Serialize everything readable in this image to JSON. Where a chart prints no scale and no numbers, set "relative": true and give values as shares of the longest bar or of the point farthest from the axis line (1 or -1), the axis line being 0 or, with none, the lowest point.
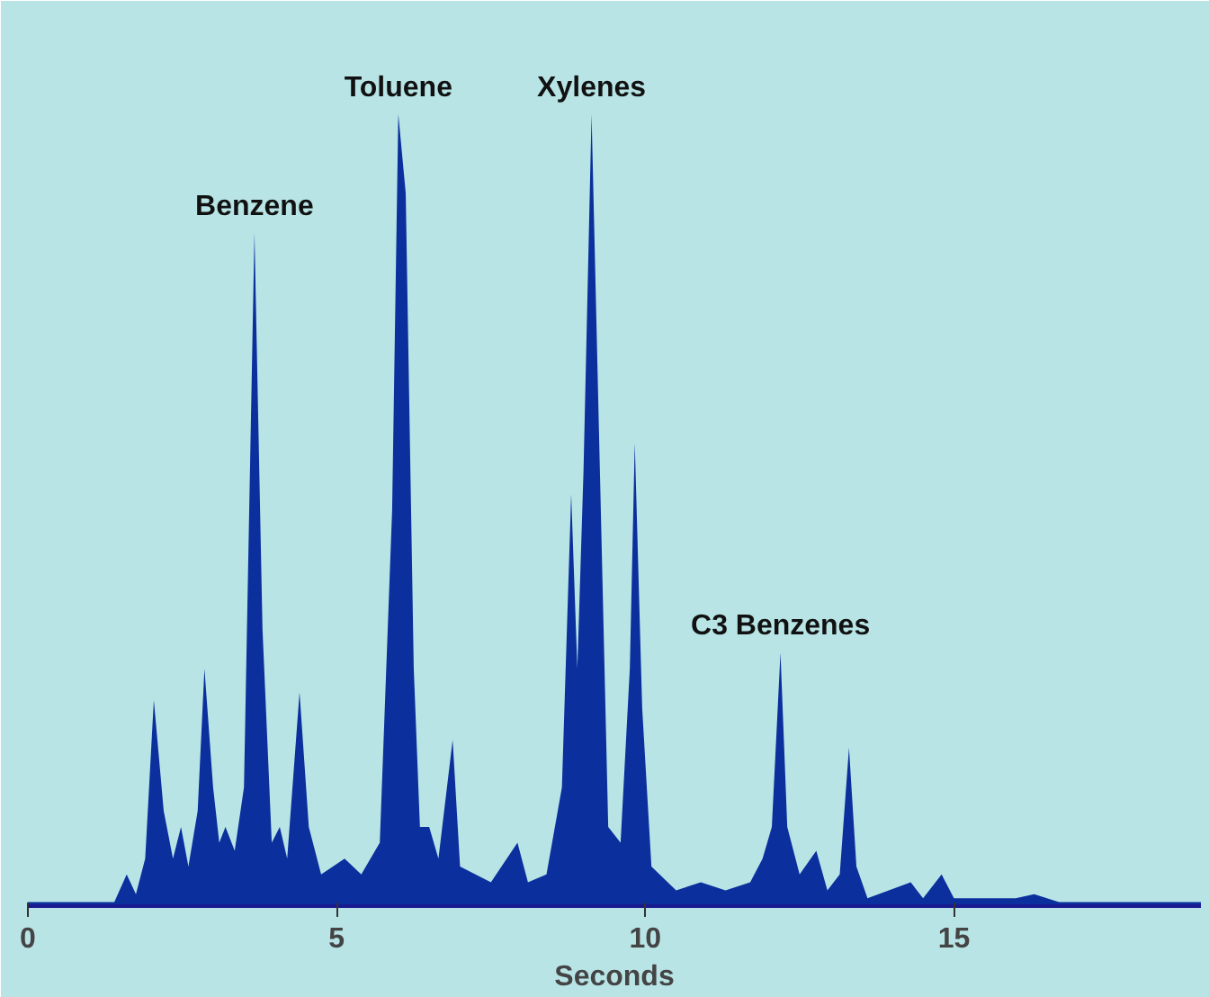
{
  "chart_data": {
    "type": "area",
    "relative": true,
    "xlabel": "Seconds",
    "xlim": [
      0,
      19
    ],
    "xticks": [
      0,
      5,
      10,
      15
    ],
    "grid": false,
    "x": [
      0,
      1.4,
      1.6,
      1.75,
      1.9,
      2.04,
      2.2,
      2.35,
      2.48,
      2.6,
      2.75,
      2.86,
      3.0,
      3.1,
      3.2,
      3.35,
      3.5,
      3.67,
      3.8,
      3.95,
      4.08,
      4.2,
      4.4,
      4.55,
      4.75,
      5.13,
      5.4,
      5.7,
      5.9,
      6.0,
      6.12,
      6.25,
      6.35,
      6.5,
      6.65,
      6.88,
      7.0,
      7.5,
      7.93,
      8.1,
      8.4,
      8.65,
      8.8,
      8.9,
      9.0,
      9.13,
      9.25,
      9.4,
      9.6,
      9.75,
      9.83,
      9.95,
      10.1,
      10.5,
      10.9,
      11.3,
      11.7,
      11.9,
      12.05,
      12.19,
      12.3,
      12.5,
      12.77,
      12.95,
      13.15,
      13.3,
      13.42,
      13.6,
      14.3,
      14.5,
      14.8,
      15.0,
      16.0,
      16.3,
      16.7,
      19
    ],
    "series": [
      {
        "color": "#0b2f9c",
        "values": [
          0.005,
          0.005,
          0.04,
          0.015,
          0.06,
          0.26,
          0.12,
          0.06,
          0.1,
          0.05,
          0.12,
          0.3,
          0.15,
          0.08,
          0.1,
          0.07,
          0.15,
          0.85,
          0.35,
          0.08,
          0.1,
          0.06,
          0.27,
          0.1,
          0.04,
          0.06,
          0.04,
          0.08,
          0.5,
          1.0,
          0.9,
          0.3,
          0.1,
          0.1,
          0.06,
          0.21,
          0.05,
          0.03,
          0.08,
          0.03,
          0.04,
          0.15,
          0.52,
          0.3,
          0.55,
          1.0,
          0.6,
          0.1,
          0.08,
          0.3,
          0.585,
          0.25,
          0.05,
          0.02,
          0.03,
          0.02,
          0.03,
          0.06,
          0.1,
          0.32,
          0.1,
          0.04,
          0.07,
          0.02,
          0.04,
          0.2,
          0.05,
          0.01,
          0.03,
          0.01,
          0.04,
          0.01,
          0.01,
          0.015,
          0.005,
          0.005
        ]
      }
    ],
    "annotations": [
      {
        "text": "Benzene",
        "x": 3.67,
        "y": 0.85
      },
      {
        "text": "Toluene",
        "x": 6.0,
        "y": 1.0
      },
      {
        "text": "Xylenes",
        "x": 9.13,
        "y": 1.0
      },
      {
        "text": "C3 Benzenes",
        "x": 12.19,
        "y": 0.32
      }
    ]
  }
}
